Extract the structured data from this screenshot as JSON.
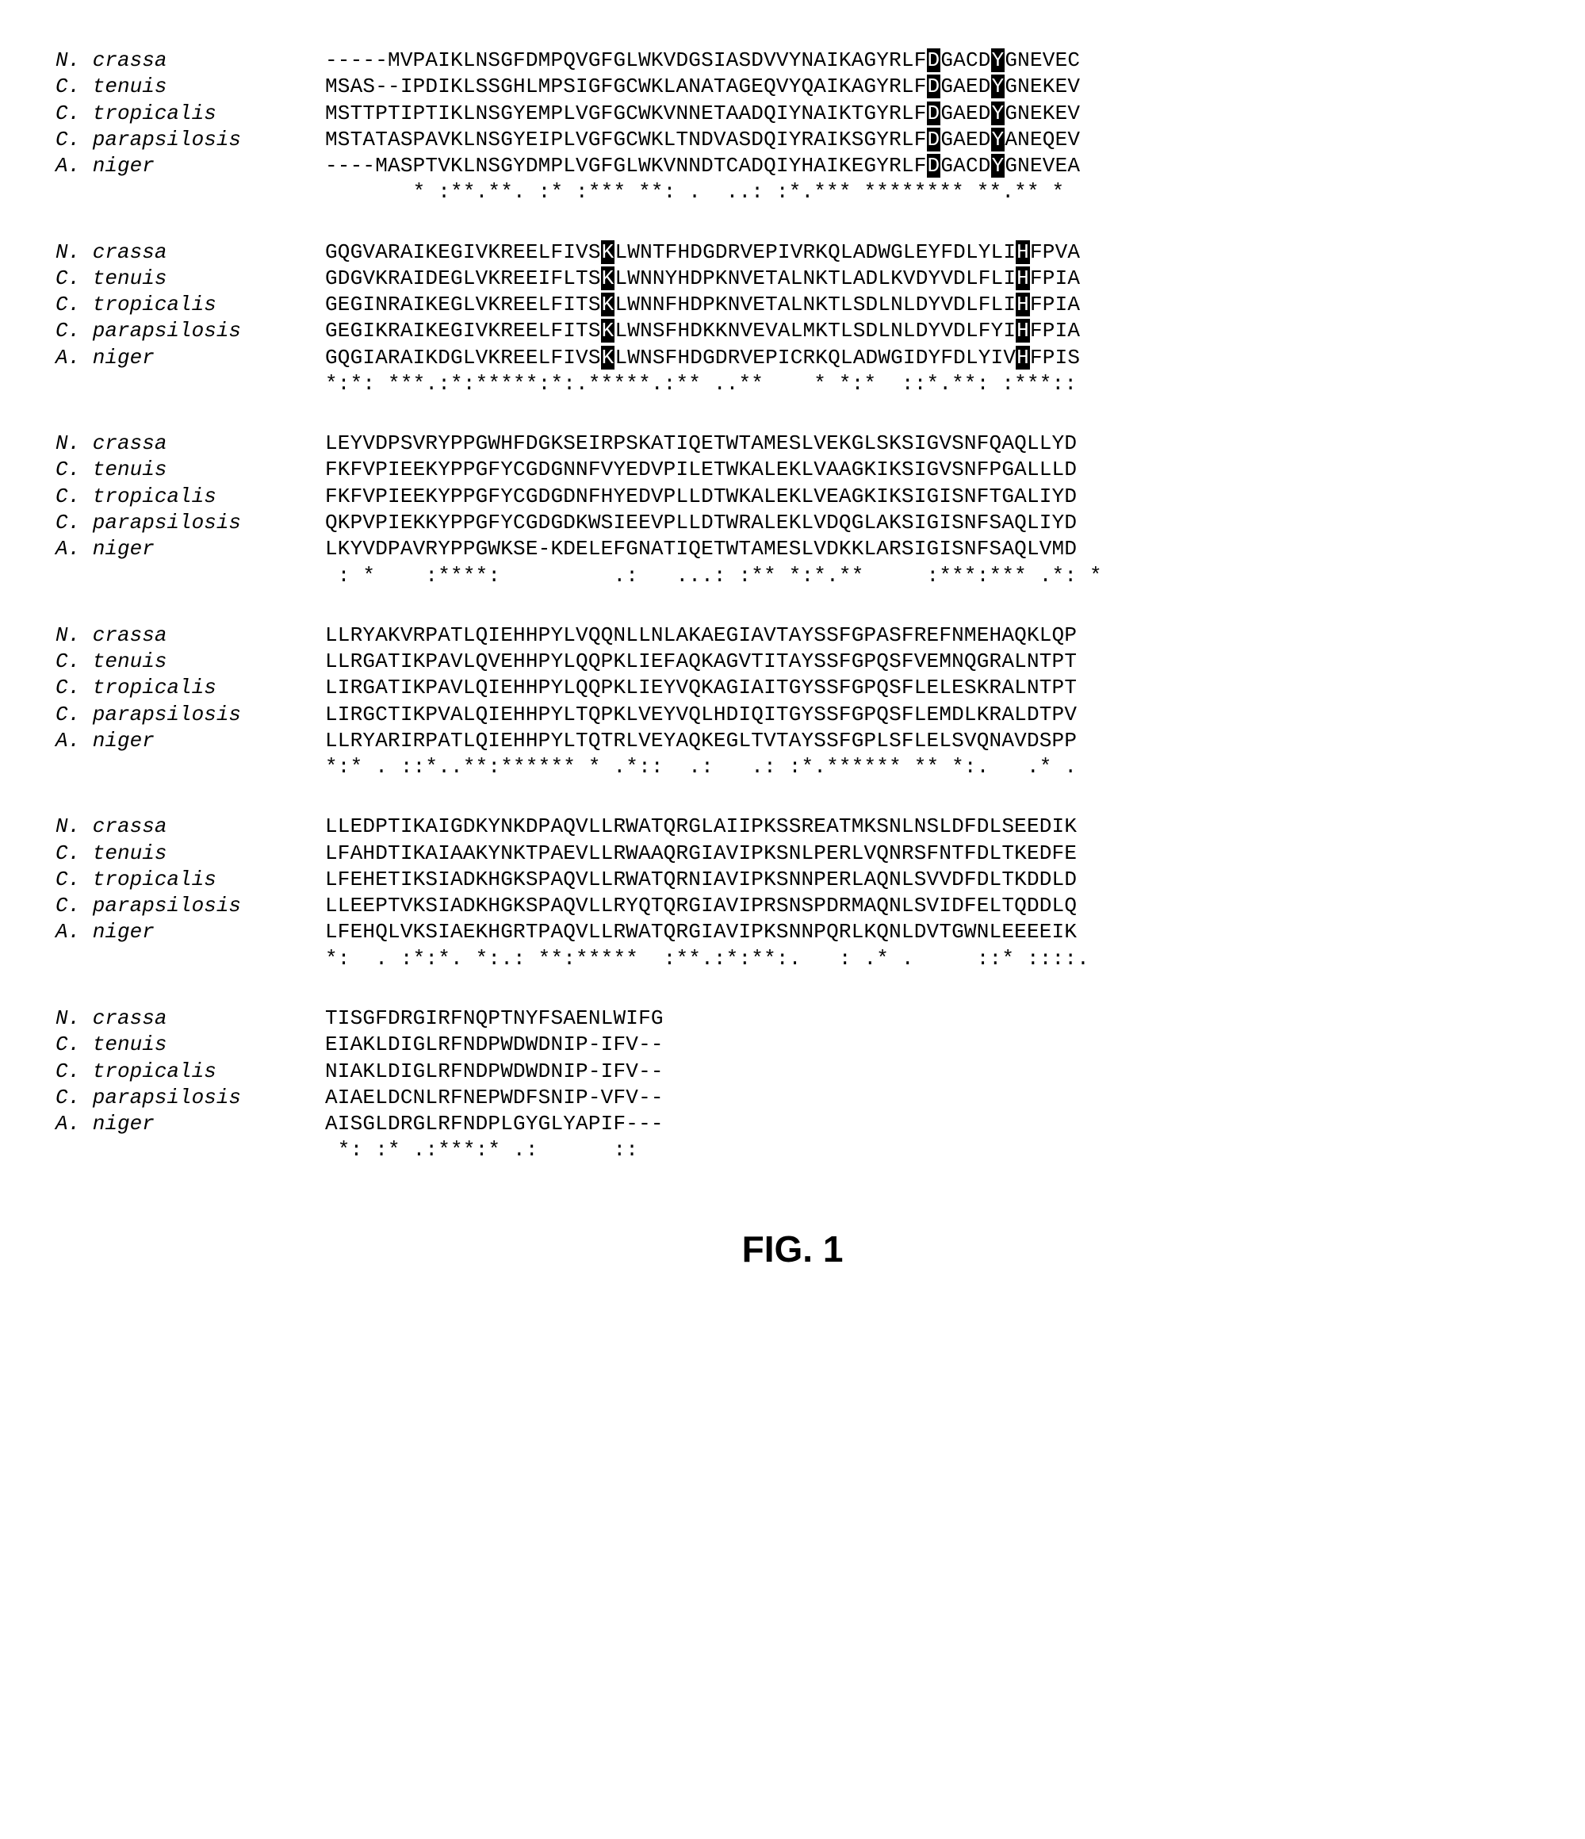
{
  "species": [
    "N. crassa",
    "C. tenuis",
    "C. tropicalis",
    "C. parapsilosis",
    "A. niger"
  ],
  "blocks": [
    {
      "rows": [
        [
          [
            "-----MVPAIKLNSGFDMPQVGFGLWKVDGSIASDVVYNAIKAGYRLF",
            0
          ],
          [
            "D",
            1
          ],
          [
            "GACD",
            0
          ],
          [
            "Y",
            1
          ],
          [
            "GNEVEC",
            0
          ]
        ],
        [
          [
            "MSAS--IPDIKLSSGHLMPSIGFGCWKLANATAGEQVYQAIKAGYRLF",
            0
          ],
          [
            "D",
            1
          ],
          [
            "GAED",
            0
          ],
          [
            "Y",
            1
          ],
          [
            "GNEKEV",
            0
          ]
        ],
        [
          [
            "MSTTPTIPTIKLNSGYEMPLVGFGCWKVNNETAADQIYNAIKTGYRLF",
            0
          ],
          [
            "D",
            1
          ],
          [
            "GAED",
            0
          ],
          [
            "Y",
            1
          ],
          [
            "GNEKEV",
            0
          ]
        ],
        [
          [
            "MSTATASPAVKLNSGYEIPLVGFGCWKLTNDVASDQIYRAIKSGYRLF",
            0
          ],
          [
            "D",
            1
          ],
          [
            "GAED",
            0
          ],
          [
            "Y",
            1
          ],
          [
            "ANEQEV",
            0
          ]
        ],
        [
          [
            "----MASPTVKLNSGYDMPLVGFGLWKVNNDTCADQIYHAIKEGYRLF",
            0
          ],
          [
            "D",
            1
          ],
          [
            "GACD",
            0
          ],
          [
            "Y",
            1
          ],
          [
            "GNEVEA",
            0
          ]
        ]
      ],
      "cons": "       * :**.**. :* :*** **: .  ..: :*.*** ******** **.** *"
    },
    {
      "rows": [
        [
          [
            "GQGVARAIKEGIVKREELFIVS",
            0
          ],
          [
            "K",
            1
          ],
          [
            "LWNTFHDGDRVEPIVRKQLADWGLEYFDLYLI",
            0
          ],
          [
            "H",
            1
          ],
          [
            "FPVA",
            0
          ]
        ],
        [
          [
            "GDGVKRAIDEGLVKREEIFLTS",
            0
          ],
          [
            "K",
            1
          ],
          [
            "LWNNYHDPKNVETALNKTLADLKVDYVDLFLI",
            0
          ],
          [
            "H",
            1
          ],
          [
            "FPIA",
            0
          ]
        ],
        [
          [
            "GEGINRAIKEGLVKREELFITS",
            0
          ],
          [
            "K",
            1
          ],
          [
            "LWNNFHDPKNVETALNKTLSDLNLDYVDLFLI",
            0
          ],
          [
            "H",
            1
          ],
          [
            "FPIA",
            0
          ]
        ],
        [
          [
            "GEGIKRAIKEGIVKREELFITS",
            0
          ],
          [
            "K",
            1
          ],
          [
            "LWNSFHDKKNVEVALMKTLSDLNLDYVDLFYI",
            0
          ],
          [
            "H",
            1
          ],
          [
            "FPIA",
            0
          ]
        ],
        [
          [
            "GQGIARAIKDGLVKREELFIVS",
            0
          ],
          [
            "K",
            1
          ],
          [
            "LWNSFHDGDRVEPICRKQLADWGIDYFDLYIV",
            0
          ],
          [
            "H",
            1
          ],
          [
            "FPIS",
            0
          ]
        ]
      ],
      "cons": "*:*: ***.:*:*****:*:.*****.:** ..**    * *:*  ::*.**: :***::"
    },
    {
      "rows": [
        [
          [
            "LEYVDPSVRYPPGWHFDGKSEIRPSKATIQETWTAMESLVEKGLSKSIGVSNFQAQLLYD",
            0
          ]
        ],
        [
          [
            "FKFVPIEEKYPPGFYCGDGNNFVYEDVPILETWKALEKLVAAGKIKSIGVSNFPGALLLD",
            0
          ]
        ],
        [
          [
            "FKFVPIEEKYPPGFYCGDGDNFHYEDVPLLDTWKALEKLVEAGKIKSIGISNFTGALIYD",
            0
          ]
        ],
        [
          [
            "QKPVPIEKKYPPGFYCGDGDKWSIEEVPLLDTWRALEKLVDQGLAKSIGISNFSAQLIYD",
            0
          ]
        ],
        [
          [
            "LKYVDPAVRYPPGWKSE-KDELEFGNATIQETWTAMESLVDKKLARSIGISNFSAQLVMD",
            0
          ]
        ]
      ],
      "cons": " : *    :****:         .:   ...: :** *:*.**     :***:*** .*: *"
    },
    {
      "rows": [
        [
          [
            "LLRYAKVRPATLQIEHHPYLVQQNLLNLAKAEGIAVTAYSSFGPASFREFNMEHAQKLQP",
            0
          ]
        ],
        [
          [
            "LLRGATIKPAVLQVEHHPYLQQPKLIEFAQKAGVTITAYSSFGPQSFVEMNQGRALNTPT",
            0
          ]
        ],
        [
          [
            "LIRGATIKPAVLQIEHHPYLQQPKLIEYVQKAGIAITGYSSFGPQSFLELESKRALNTPT",
            0
          ]
        ],
        [
          [
            "LIRGCTIKPVALQIEHHPYLTQPKLVEYVQLHDIQITGYSSFGPQSFLEMDLKRALDTPV",
            0
          ]
        ],
        [
          [
            "LLRYARIRPATLQIEHHPYLTQTRLVEYAQKEGLTVTAYSSFGPLSFLELSVQNAVDSPP",
            0
          ]
        ]
      ],
      "cons": "*:* . ::*..**:****** * .*::  .:   .: :*.****** ** *:.   .* ."
    },
    {
      "rows": [
        [
          [
            "LLEDPTIKAIGDKYNKDPAQVLLRWATQRGLAIIPKSSREATMKSNLNSLDFDLSEEDIK",
            0
          ]
        ],
        [
          [
            "LFAHDTIKAIAAKYNKTPAEVLLRWAAQRGIAVIPKSNLPERLVQNRSFNTFDLTKEDFE",
            0
          ]
        ],
        [
          [
            "LFEHETIKSIADKHGKSPAQVLLRWATQRNIAVIPKSNNPERLAQNLSVVDFDLTKDDLD",
            0
          ]
        ],
        [
          [
            "LLEEPTVKSIADKHGKSPAQVLLRYQTQRGIAVIPRSNSPDRMAQNLSVIDFELTQDDLQ",
            0
          ]
        ],
        [
          [
            "LFEHQLVKSIAEKHGRTPAQVLLRWATQRGIAVIPKSNNPQRLKQNLDVTGWNLEEEEIK",
            0
          ]
        ]
      ],
      "cons": "*:  . :*:*. *:.: **:*****  :**.:*:**:.   : .* .     ::* ::::."
    },
    {
      "rows": [
        [
          [
            "TISGFDRGIRFNQPTNYFSAENLWIFG",
            0
          ]
        ],
        [
          [
            "EIAKLDIGLRFNDPWDWDNIP-IFV--",
            0
          ]
        ],
        [
          [
            "NIAKLDIGLRFNDPWDWDNIP-IFV--",
            0
          ]
        ],
        [
          [
            "AIAELDCNLRFNEPWDFSNIP-VFV--",
            0
          ]
        ],
        [
          [
            "AISGLDRGLRFNDPLGYGLYAPIF---",
            0
          ]
        ]
      ],
      "cons": " *: :* .:***:* .:      ::"
    }
  ],
  "figcaption": "FIG. 1"
}
